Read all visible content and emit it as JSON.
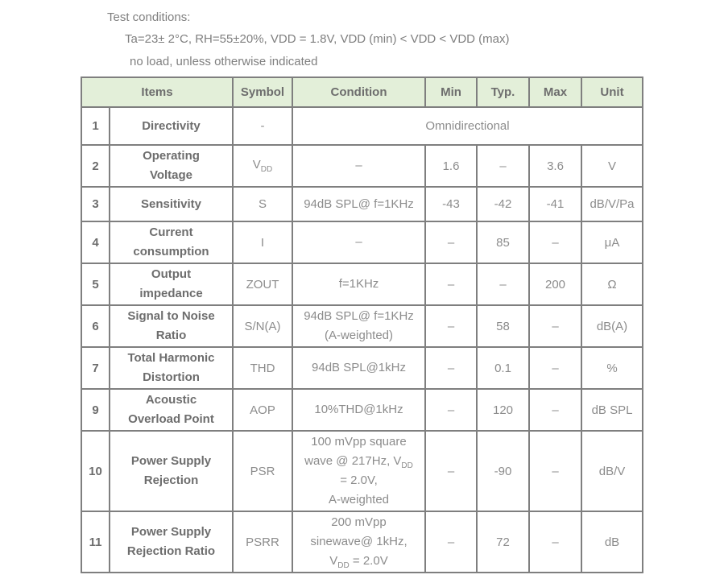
{
  "test_conditions": {
    "title": "Test conditions:",
    "line1": "Ta=23± 2°C, RH=55±20%, VDD = 1.8V, VDD (min) < VDD < VDD (max)",
    "line2": "no load, unless otherwise indicated"
  },
  "colors": {
    "header_bg": "#e3efd9",
    "grid_border": "#7f7f7f",
    "label_text": "#6d6d6d",
    "value_text": "#8c8c8c"
  },
  "table": {
    "headers": {
      "items": "Items",
      "symbol": "Symbol",
      "condition": "Condition",
      "min": "Min",
      "typ": "Typ.",
      "max": "Max",
      "unit": "Unit"
    },
    "rows": [
      {
        "num": "1",
        "item": "Directivity",
        "symbol": "-",
        "merged": "Omnidirectional"
      },
      {
        "num": "2",
        "item": "Operating\nVoltage",
        "symbol": "V~DD~",
        "condition": "–",
        "min": "1.6",
        "typ": "–",
        "max": "3.6",
        "unit": "V"
      },
      {
        "num": "3",
        "item": "Sensitivity",
        "symbol": "S",
        "condition": "94dB SPL@ f=1KHz",
        "min": "-43",
        "typ": "-42",
        "max": "-41",
        "unit": "dB/V/Pa"
      },
      {
        "num": "4",
        "item": "Current\nconsumption",
        "symbol": "I",
        "condition": "–",
        "min": "–",
        "typ": "85",
        "max": "–",
        "unit": "μA"
      },
      {
        "num": "5",
        "item": "Output\nimpedance",
        "symbol": "ZOUT",
        "condition": "f=1KHz",
        "min": "–",
        "typ": "–",
        "max": "200",
        "unit": "Ω"
      },
      {
        "num": "6",
        "item": "Signal to Noise\nRatio",
        "symbol": "S/N(A)",
        "condition": "94dB SPL@ f=1KHz\n(A-weighted)",
        "min": "–",
        "typ": "58",
        "max": "–",
        "unit": "dB(A)"
      },
      {
        "num": "7",
        "item": "Total Harmonic\nDistortion",
        "symbol": "THD",
        "condition": "94dB SPL@1kHz",
        "min": "–",
        "typ": "0.1",
        "max": "–",
        "unit": "%"
      },
      {
        "num": "9",
        "item": "Acoustic\nOverload Point",
        "symbol": "AOP",
        "condition": "10%THD@1kHz",
        "min": "–",
        "typ": "120",
        "max": "–",
        "unit": "dB SPL"
      },
      {
        "num": "10",
        "item": "Power Supply\nRejection",
        "symbol": "PSR",
        "condition": "100 mVpp square\nwave @ 217Hz, V~DD~\n= 2.0V,\nA-weighted",
        "min": "–",
        "typ": "-90",
        "max": "–",
        "unit": "dB/V"
      },
      {
        "num": "11",
        "item": "Power Supply\nRejection Ratio",
        "symbol": "PSRR",
        "condition": "200 mVpp\nsinewave@ 1kHz,\nV~DD~ = 2.0V",
        "min": "–",
        "typ": "72",
        "max": "–",
        "unit": "dB"
      }
    ]
  }
}
